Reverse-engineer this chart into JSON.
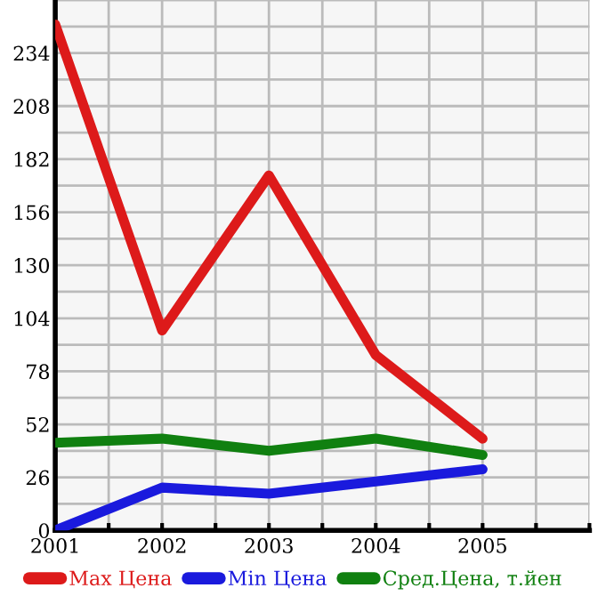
{
  "chart_data": {
    "type": "line",
    "x": [
      2001,
      2002,
      2003,
      2004,
      2005
    ],
    "series": [
      {
        "name": "Max Цена",
        "color": "#dd1a1a",
        "values": [
          248,
          98,
          174,
          86,
          45
        ]
      },
      {
        "name": "Min Цена",
        "color": "#1a1add",
        "values": [
          0,
          21,
          18,
          24,
          30
        ]
      },
      {
        "name": "Сред.Цена, т.йен",
        "color": "#108010",
        "values": [
          43,
          45,
          39,
          45,
          37
        ]
      }
    ],
    "xlim": [
      2001,
      2006
    ],
    "ylim": [
      0,
      260
    ],
    "xticks": [
      2001,
      {
        "value": 2001.5,
        "label": null
      },
      2002,
      {
        "value": 2002.5,
        "label": null
      },
      2003,
      {
        "value": 2003.5,
        "label": null
      },
      2004,
      {
        "value": 2004.5,
        "label": null
      },
      2005,
      {
        "value": 2005.5,
        "label": null
      },
      {
        "value": 2006,
        "label": null
      }
    ],
    "yticks": [
      0,
      {
        "value": 13,
        "label": null
      },
      26,
      {
        "value": 39,
        "label": null
      },
      52,
      {
        "value": 65,
        "label": null
      },
      78,
      {
        "value": 91,
        "label": null
      },
      104,
      {
        "value": 117,
        "label": null
      },
      130,
      {
        "value": 143,
        "label": null
      },
      156,
      {
        "value": 169,
        "label": null
      },
      182,
      {
        "value": 195,
        "label": null
      },
      208,
      {
        "value": 221,
        "label": null
      },
      234,
      {
        "value": 247,
        "label": null
      },
      {
        "value": 260,
        "label": null
      }
    ],
    "grid": true,
    "legend": "bottom",
    "marker": "none",
    "line_style": "solid"
  }
}
